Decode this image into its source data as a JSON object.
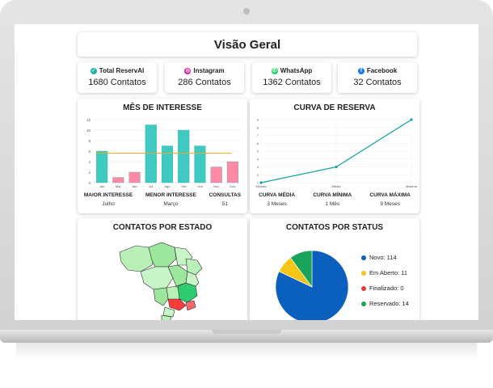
{
  "dashboard": {
    "title": "Visão Geral",
    "stats": [
      {
        "name": "Total ReservAI",
        "value": "1680 Contatos",
        "icon": "reservai-icon",
        "color": "#1fb2a7"
      },
      {
        "name": "Instagram",
        "value": "286 Contatos",
        "icon": "instagram-icon",
        "color": "#d6249f"
      },
      {
        "name": "WhatsApp",
        "value": "1362 Contatos",
        "icon": "whatsapp-icon",
        "color": "#25d366"
      },
      {
        "name": "Facebook",
        "value": "32 Contatos",
        "icon": "facebook-icon",
        "color": "#1877f2"
      }
    ],
    "interest": {
      "title": "MÊS DE INTERESSE",
      "labels": [
        {
          "k": "MAIOR INTERESSE",
          "v": "Julho"
        },
        {
          "k": "MENOR INTERESSE",
          "v": "Março"
        },
        {
          "k": "CONSULTAS",
          "v": "51"
        }
      ]
    },
    "curve": {
      "title": "CURVA DE RESERVA",
      "labels": [
        {
          "k": "CURVA MÉDIA",
          "v": "3 Meses"
        },
        {
          "k": "CURVA MÍNIMA",
          "v": "1 Mês"
        },
        {
          "k": "CURVA MÁXIMA",
          "v": "9 Meses"
        }
      ]
    },
    "state": {
      "title": "CONTATOS POR ESTADO"
    },
    "status": {
      "title": "CONTATOS POR STATUS",
      "legend": [
        {
          "label": "Novo: 114",
          "color": "#0b5fbd"
        },
        {
          "label": "Em Aberto: 11",
          "color": "#f5c518"
        },
        {
          "label": "Finalizado: 0",
          "color": "#e53935"
        },
        {
          "label": "Reservado: 14",
          "color": "#1aa35a"
        }
      ]
    }
  },
  "chart_data": [
    {
      "type": "bar",
      "title": "MÊS DE INTERESSE",
      "categories": [
        "Jan",
        "Mar",
        "Abr",
        "Jul",
        "Ago",
        "Set",
        "Out",
        "Nov",
        "Dez"
      ],
      "values": [
        6,
        1,
        2,
        11,
        7,
        10,
        7,
        3,
        4
      ],
      "colors": [
        "#40c9c0",
        "#ff8aa6",
        "#ff8aa6",
        "#40c9c0",
        "#40c9c0",
        "#40c9c0",
        "#40c9c0",
        "#ff8aa6",
        "#ff8aa6"
      ],
      "average": 5.6,
      "average_color": "#f5a623",
      "yticks": [
        0,
        2,
        4,
        6,
        8,
        10,
        12
      ],
      "ylim": [
        0,
        12
      ],
      "grid": true
    },
    {
      "type": "line",
      "title": "CURVA DE RESERVA",
      "categories": [
        "Mínima",
        "Média",
        "Máxima"
      ],
      "values": [
        1,
        3,
        9
      ],
      "color": "#14a3a3",
      "yticks": [
        1,
        2,
        3,
        4,
        5,
        6,
        7,
        8,
        9
      ],
      "ylim": [
        1,
        9
      ],
      "grid": true
    },
    {
      "type": "pie",
      "title": "CONTATOS POR STATUS",
      "labels": [
        "Novo",
        "Em Aberto",
        "Finalizado",
        "Reservado"
      ],
      "values": [
        114,
        11,
        0,
        14
      ],
      "colors": [
        "#0b5fbd",
        "#f5c518",
        "#e53935",
        "#1aa35a"
      ]
    }
  ]
}
